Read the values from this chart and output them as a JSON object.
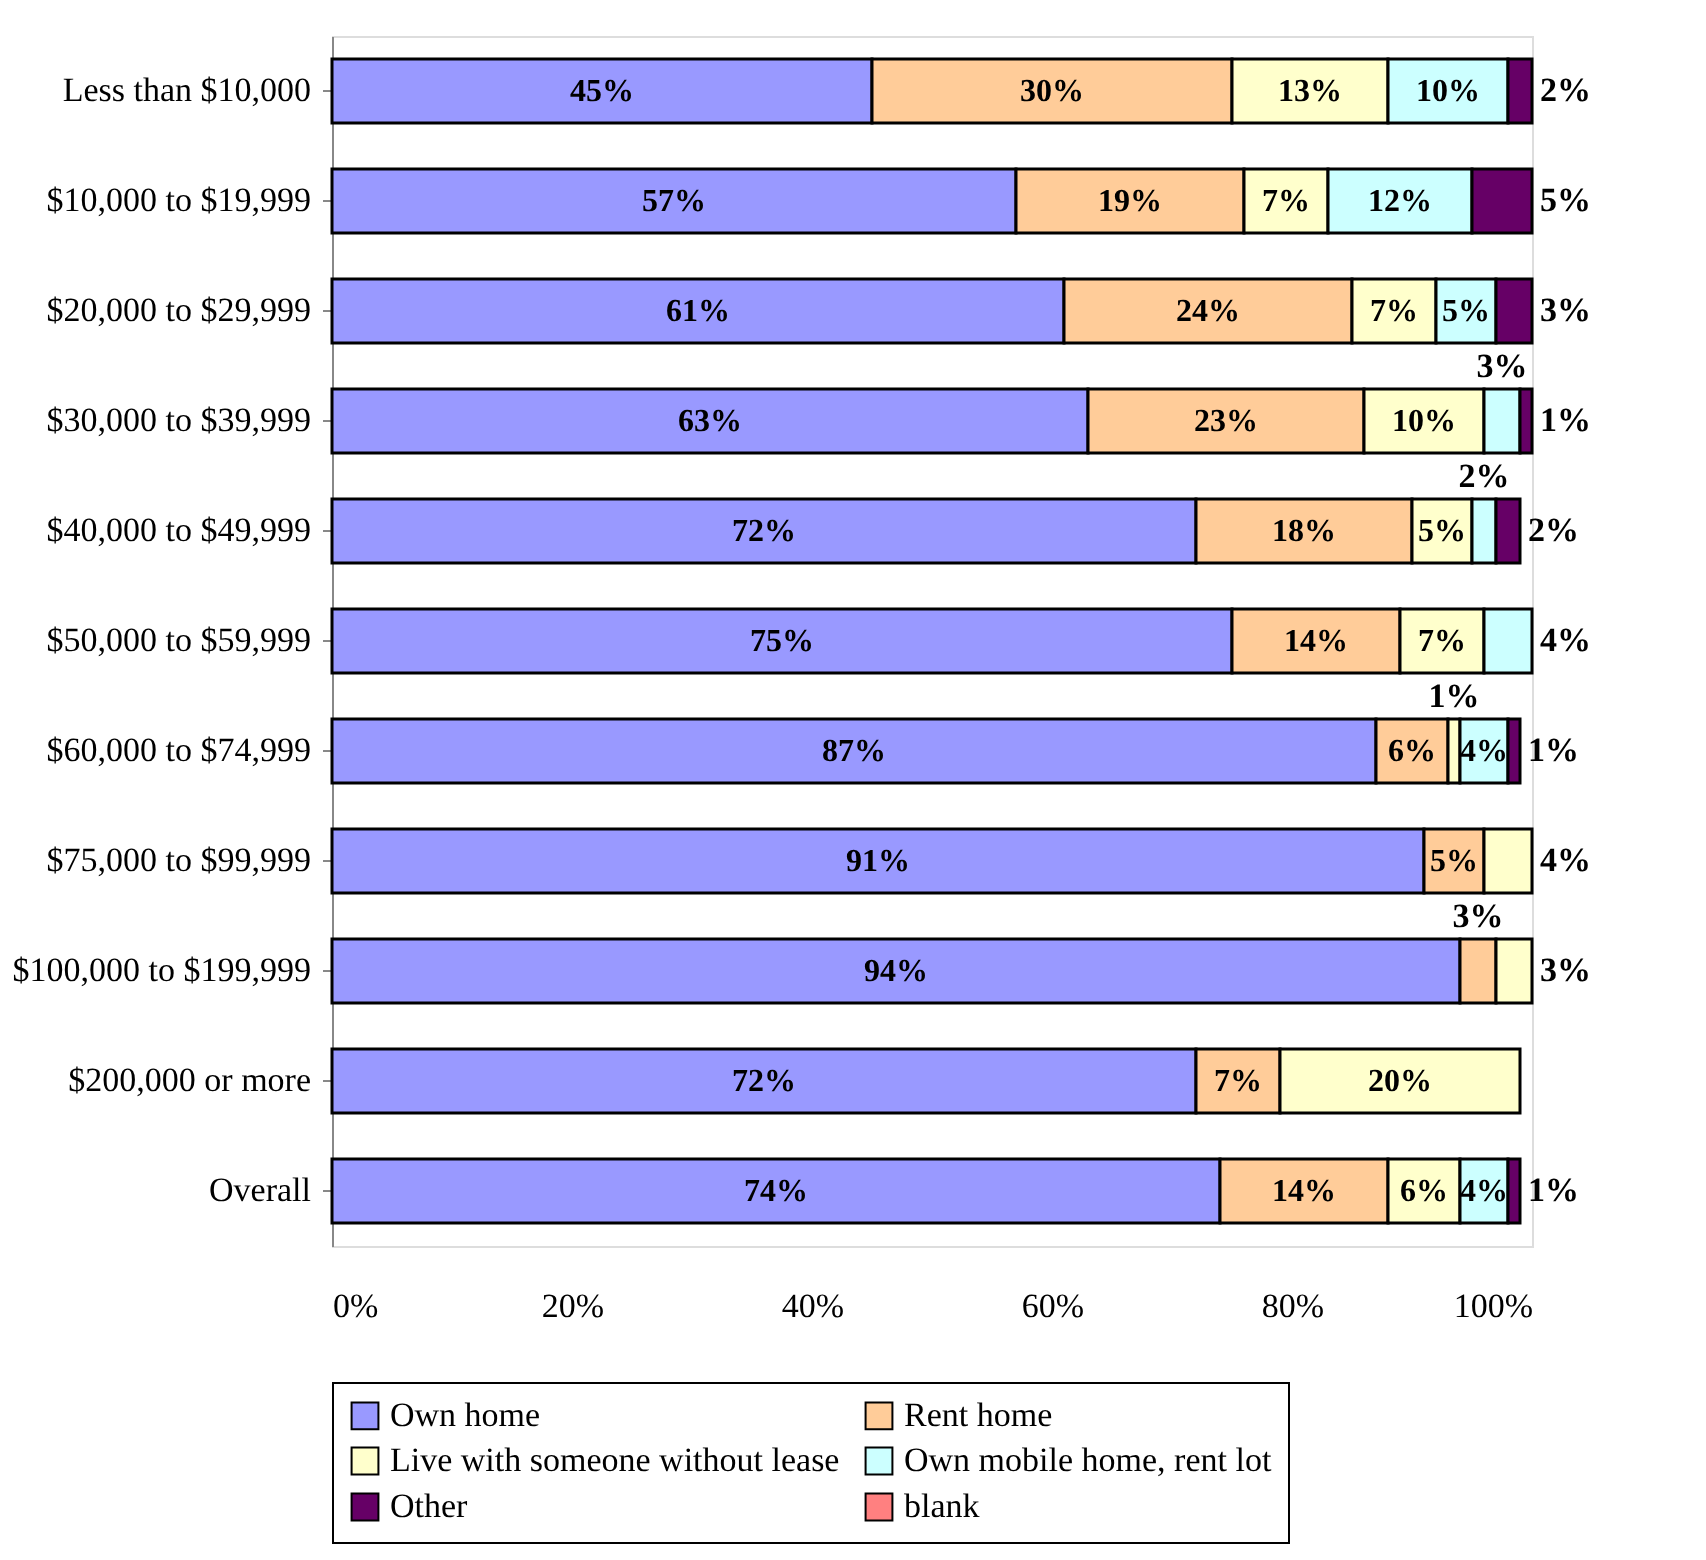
{
  "chart_data": {
    "type": "bar",
    "orientation": "horizontal",
    "stacked": true,
    "categories": [
      "Less than $10,000",
      "$10,000 to $19,999",
      "$20,000 to $29,999",
      "$30,000 to $39,999",
      "$40,000 to $49,999",
      "$50,000 to $59,999",
      "$60,000 to $74,999",
      "$75,000 to $99,999",
      "$100,000 to $199,999",
      "$200,000 or more",
      "Overall"
    ],
    "series": [
      {
        "name": "Own home",
        "color": "#9999ff",
        "values": [
          45,
          57,
          61,
          63,
          72,
          75,
          87,
          91,
          94,
          72,
          74
        ],
        "value_labels": [
          "45%",
          "57%",
          "61%",
          "63%",
          "72%",
          "75%",
          "87%",
          "91%",
          "94%",
          "72%",
          "74%"
        ]
      },
      {
        "name": "Rent home",
        "color": "#ffcc99",
        "values": [
          30,
          19,
          24,
          23,
          18,
          14,
          6,
          5,
          3,
          7,
          14
        ],
        "value_labels": [
          "30%",
          "19%",
          "24%",
          "23%",
          "18%",
          "14%",
          "6%",
          "5%",
          "3%",
          "7%",
          "14%"
        ]
      },
      {
        "name": "Live with someone without lease",
        "color": "#ffffcc",
        "values": [
          13,
          7,
          7,
          10,
          5,
          7,
          1,
          4,
          3,
          20,
          6
        ],
        "value_labels": [
          "13%",
          "7%",
          "7%",
          "10%",
          "5%",
          "7%",
          "1%",
          "4%",
          "3%",
          "20%",
          "6%"
        ]
      },
      {
        "name": "Own mobile home, rent lot",
        "color": "#ccffff",
        "values": [
          10,
          12,
          5,
          3,
          2,
          4,
          4,
          null,
          null,
          null,
          4
        ],
        "value_labels": [
          "10%",
          "12%",
          "5%",
          "3%",
          "2%",
          "4%",
          "4%",
          null,
          null,
          null,
          "4%"
        ]
      },
      {
        "name": "Other",
        "color": "#660066",
        "values": [
          2,
          5,
          3,
          1,
          2,
          null,
          1,
          null,
          null,
          null,
          1
        ],
        "value_labels": [
          "2%",
          "5%",
          "3%",
          "1%",
          "2%",
          null,
          "1%",
          null,
          null,
          null,
          "1%"
        ]
      },
      {
        "name": "blank",
        "color": "#ff8080",
        "values": [
          null,
          null,
          null,
          null,
          null,
          null,
          null,
          null,
          null,
          null,
          null
        ],
        "value_labels": [
          null,
          null,
          null,
          null,
          null,
          null,
          null,
          null,
          null,
          null,
          null
        ]
      }
    ],
    "xlim": [
      0,
      100
    ],
    "xticks": [
      {
        "value": 0,
        "label": "0%"
      },
      {
        "value": 20,
        "label": "20%"
      },
      {
        "value": 40,
        "label": "40%"
      },
      {
        "value": 60,
        "label": "60%"
      },
      {
        "value": 80,
        "label": "80%"
      },
      {
        "value": 100,
        "label": "100%"
      }
    ],
    "grid": false,
    "legend": "bottom"
  }
}
